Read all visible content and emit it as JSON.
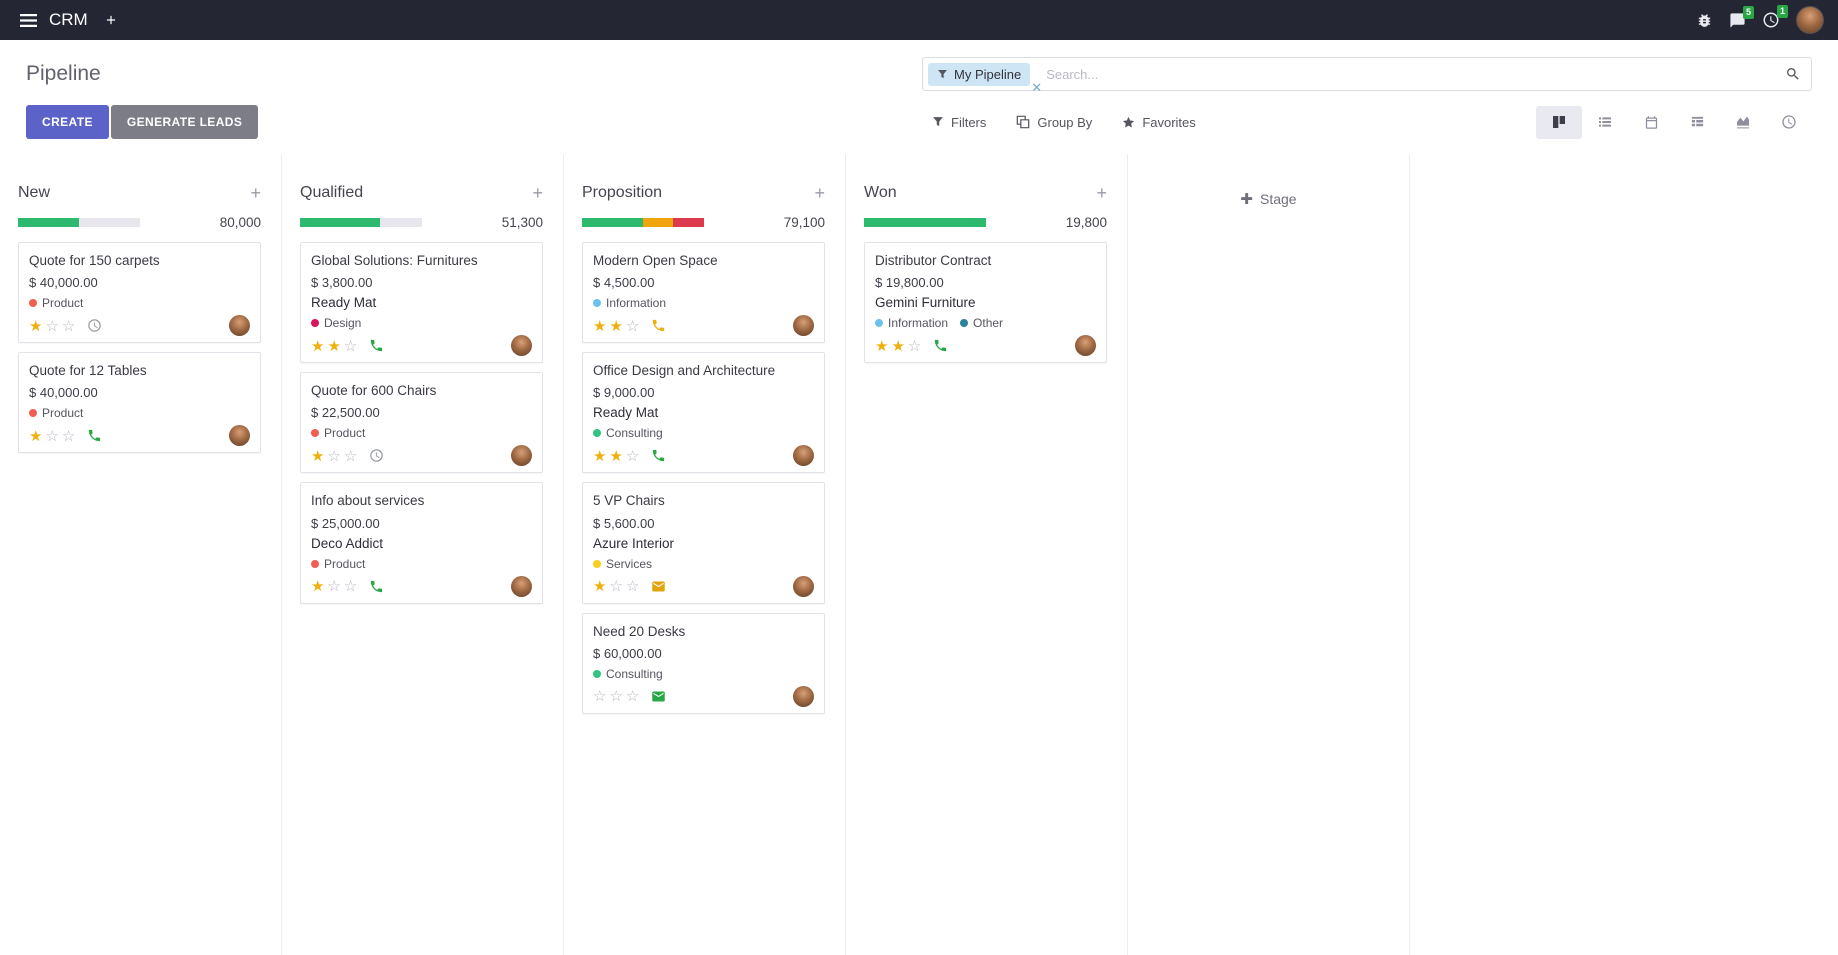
{
  "theme": {
    "accent": "#5b63c8",
    "topbar-bg": "#252633"
  },
  "topbar": {
    "app_name": "CRM",
    "message_badge": "5",
    "activity_badge": "1"
  },
  "control_panel": {
    "title": "Pipeline",
    "create_label": "CREATE",
    "generate_leads_label": "GENERATE LEADS",
    "search": {
      "facet_label": "My Pipeline",
      "placeholder": "Search..."
    },
    "filters_label": "Filters",
    "group_by_label": "Group By",
    "favorites_label": "Favorites",
    "active_view": "kanban"
  },
  "board": {
    "add_stage_label": "Stage",
    "columns": [
      {
        "name": "New",
        "total": "80,000",
        "progress": [
          {
            "status": "success",
            "color": "#2eba6e",
            "pct": 50
          }
        ],
        "cards": [
          {
            "title": "Quote for 150 carpets",
            "amount": "$ 40,000.00",
            "tags": [
              {
                "label": "Product",
                "color": "#f06050"
              }
            ],
            "stars": 1,
            "activity": {
              "type": "clock",
              "color": "#979aa0"
            }
          },
          {
            "title": "Quote for 12 Tables",
            "amount": "$ 40,000.00",
            "tags": [
              {
                "label": "Product",
                "color": "#f06050"
              }
            ],
            "stars": 1,
            "activity": {
              "type": "phone",
              "color": "#28a745"
            }
          }
        ]
      },
      {
        "name": "Qualified",
        "total": "51,300",
        "progress": [
          {
            "status": "success",
            "color": "#2eba6e",
            "pct": 66
          }
        ],
        "cards": [
          {
            "title": "Global Solutions: Furnitures",
            "amount": "$ 3,800.00",
            "partner": "Ready Mat",
            "tags": [
              {
                "label": "Design",
                "color": "#d6145f"
              }
            ],
            "stars": 2,
            "activity": {
              "type": "phone",
              "color": "#28a745"
            }
          },
          {
            "title": "Quote for 600 Chairs",
            "amount": "$ 22,500.00",
            "tags": [
              {
                "label": "Product",
                "color": "#f06050"
              }
            ],
            "stars": 1,
            "activity": {
              "type": "clock",
              "color": "#979aa0"
            }
          },
          {
            "title": "Info about services",
            "amount": "$ 25,000.00",
            "partner": "Deco Addict",
            "tags": [
              {
                "label": "Product",
                "color": "#f06050"
              }
            ],
            "stars": 1,
            "activity": {
              "type": "phone",
              "color": "#28a745"
            }
          }
        ]
      },
      {
        "name": "Proposition",
        "total": "79,100",
        "progress": [
          {
            "status": "success",
            "color": "#2eba6e",
            "pct": 50
          },
          {
            "status": "warning",
            "color": "#f0a50e",
            "pct": 25
          },
          {
            "status": "danger",
            "color": "#dd3b4d",
            "pct": 25
          }
        ],
        "cards": [
          {
            "title": "Modern Open Space",
            "amount": "$ 4,500.00",
            "tags": [
              {
                "label": "Information",
                "color": "#6cc1ed"
              }
            ],
            "stars": 2,
            "activity": {
              "type": "phone",
              "color": "#edb00e"
            }
          },
          {
            "title": "Office Design and Architecture",
            "amount": "$ 9,000.00",
            "partner": "Ready Mat",
            "tags": [
              {
                "label": "Consulting",
                "color": "#30c381"
              }
            ],
            "stars": 2,
            "activity": {
              "type": "phone",
              "color": "#28a745"
            }
          },
          {
            "title": "5 VP Chairs",
            "amount": "$ 5,600.00",
            "partner": "Azure Interior",
            "tags": [
              {
                "label": "Services",
                "color": "#f7cd1f"
              }
            ],
            "stars": 1,
            "activity": {
              "type": "envelope",
              "color": "#e2a60d"
            }
          },
          {
            "title": "Need 20 Desks",
            "amount": "$ 60,000.00",
            "tags": [
              {
                "label": "Consulting",
                "color": "#30c381"
              }
            ],
            "stars": 0,
            "activity": {
              "type": "envelope",
              "color": "#28a745"
            }
          }
        ]
      },
      {
        "name": "Won",
        "total": "19,800",
        "progress": [
          {
            "status": "success",
            "color": "#2eba6e",
            "pct": 100
          }
        ],
        "cards": [
          {
            "title": "Distributor Contract",
            "amount": "$ 19,800.00",
            "partner": "Gemini Furniture",
            "tags": [
              {
                "label": "Information",
                "color": "#6cc1ed"
              },
              {
                "label": "Other",
                "color": "#2c8397"
              }
            ],
            "stars": 2,
            "activity": {
              "type": "phone",
              "color": "#28a745"
            }
          }
        ]
      }
    ]
  }
}
